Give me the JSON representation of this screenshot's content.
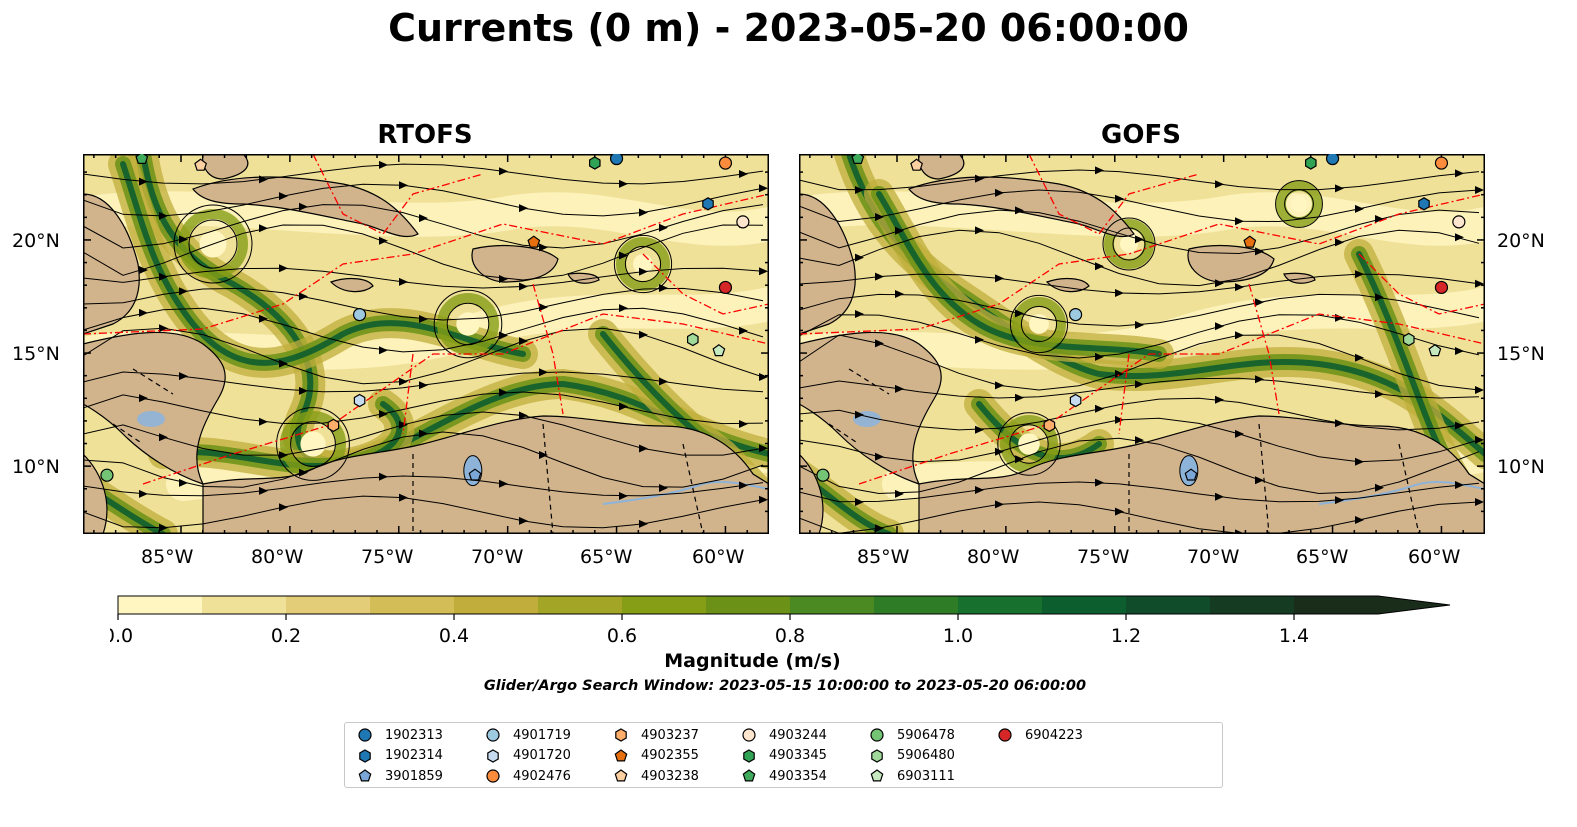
{
  "title": "Currents (0 m) - 2023-05-20 06:00:00",
  "panels": [
    {
      "title": "RTOFS"
    },
    {
      "title": "GOFS"
    }
  ],
  "lon_ticks": [
    "85°W",
    "80°W",
    "75°W",
    "70°W",
    "65°W",
    "60°W"
  ],
  "lat_ticks": [
    "20°N",
    "15°N",
    "10°N"
  ],
  "map_extent": {
    "lon": [
      -89.5,
      -58.0
    ],
    "lat": [
      7.0,
      23.8
    ]
  },
  "colorbar": {
    "label": "Magnitude (m/s)",
    "range": [
      0.0,
      1.5
    ],
    "extend": "max",
    "tick_labels": [
      "0.0",
      "0.2",
      "0.4",
      "0.6",
      "0.8",
      "1.0",
      "1.2",
      "1.4"
    ],
    "tick_values": [
      0.0,
      0.2,
      0.4,
      0.6,
      0.8,
      1.0,
      1.2,
      1.4
    ],
    "colors": [
      "#fff6c2",
      "#f0e199",
      "#e3cd78",
      "#d3bd56",
      "#c0ad3b",
      "#a3a526",
      "#869d16",
      "#6b9217",
      "#4b8a22",
      "#2f7c27",
      "#18702f",
      "#0d5e2e",
      "#104b2a",
      "#163b23",
      "#1a2d1b"
    ]
  },
  "search_window": "Glider/Argo Search Window: 2023-05-15 10:00:00 to 2023-05-20 06:00:00",
  "colors": {
    "land": "#d2b48c",
    "lakes": "#8eb3d9",
    "eez_line": "#ff0000",
    "streamline": "#000000",
    "ocean_low": "#fff6c2"
  },
  "floats": [
    {
      "id": "1902313",
      "marker": "circle",
      "color": "#1f77b4",
      "lon": -65.0,
      "lat": 23.6
    },
    {
      "id": "1902314",
      "marker": "hexagon",
      "color": "#1f77b4",
      "lon": -60.8,
      "lat": 21.6
    },
    {
      "id": "3901859",
      "marker": "pentagon",
      "color": "#7aa6d8",
      "lon": -71.5,
      "lat": 9.6
    },
    {
      "id": "4901719",
      "marker": "circle",
      "color": "#9ecae1",
      "lon": -76.8,
      "lat": 16.7
    },
    {
      "id": "4901720",
      "marker": "hexagon",
      "color": "#c6dbef",
      "lon": -76.8,
      "lat": 12.9
    },
    {
      "id": "4902476",
      "marker": "circle",
      "color": "#fd8d3c",
      "lon": -60.0,
      "lat": 23.4
    },
    {
      "id": "4903237",
      "marker": "hexagon",
      "color": "#fdae6b",
      "lon": -78.0,
      "lat": 11.8
    },
    {
      "id": "4902355",
      "marker": "pentagon",
      "color": "#e6700f",
      "lon": -68.8,
      "lat": 19.9
    },
    {
      "id": "4903238",
      "marker": "pentagon",
      "color": "#fdd0a2",
      "lon": -84.1,
      "lat": 23.3
    },
    {
      "id": "4903244",
      "marker": "circle",
      "color": "#fee6ce",
      "lon": -59.2,
      "lat": 20.8
    },
    {
      "id": "4903345",
      "marker": "hexagon",
      "color": "#31a354",
      "lon": -66.0,
      "lat": 23.4
    },
    {
      "id": "4903354",
      "marker": "pentagon",
      "color": "#41ab5d",
      "lon": -86.8,
      "lat": 23.6
    },
    {
      "id": "5906478",
      "marker": "circle",
      "color": "#74c476",
      "lon": -88.4,
      "lat": 9.6
    },
    {
      "id": "5906480",
      "marker": "hexagon",
      "color": "#a1d99b",
      "lon": -61.5,
      "lat": 15.6
    },
    {
      "id": "6903111",
      "marker": "pentagon",
      "color": "#c7e9c0",
      "lon": -60.3,
      "lat": 15.1
    },
    {
      "id": "6904223",
      "marker": "circle",
      "color": "#d62728",
      "lon": -60.0,
      "lat": 17.9
    }
  ]
}
